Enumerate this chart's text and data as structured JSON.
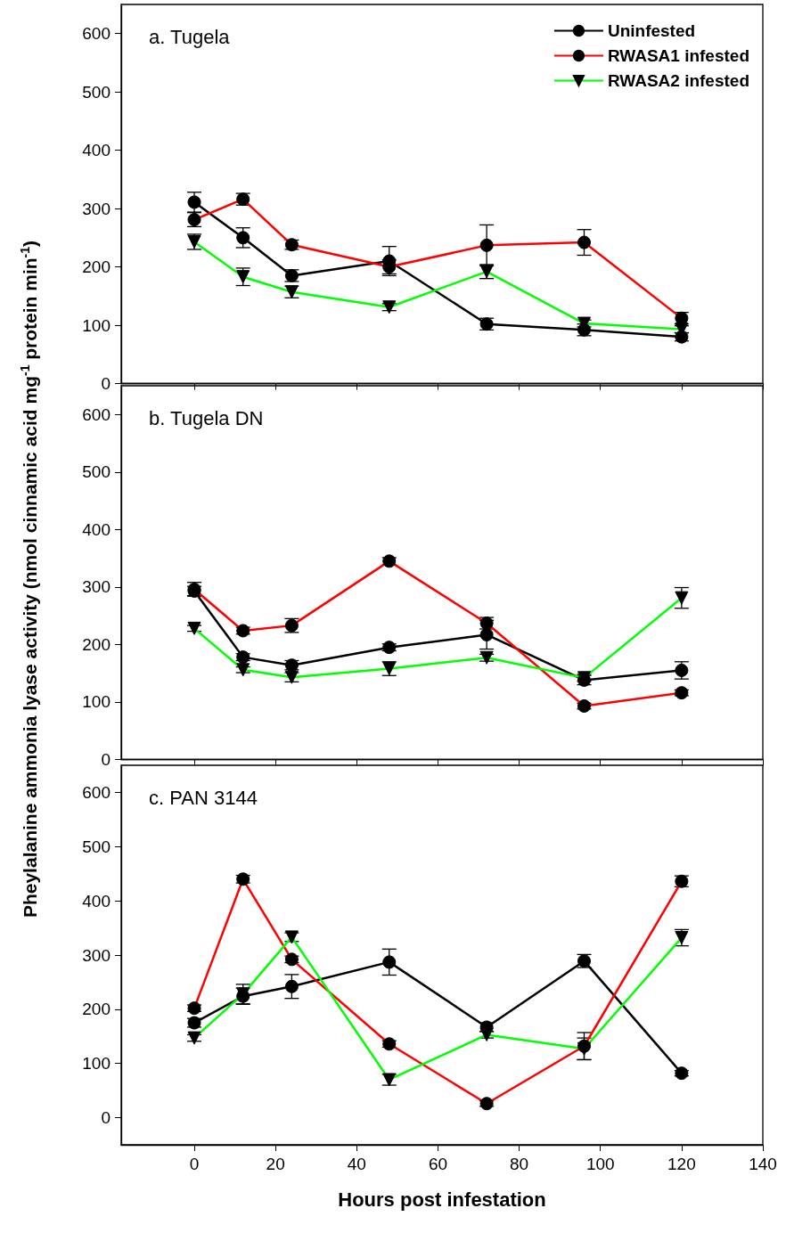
{
  "chart_data": [
    {
      "type": "line",
      "title": "a. Tugela",
      "legend": "top right",
      "tick_labels": "y",
      "grid": false,
      "x": [
        0,
        12,
        24,
        48,
        72,
        96,
        120
      ],
      "xlim": [
        -18,
        140
      ],
      "xticks": [
        0,
        20,
        40,
        60,
        80,
        100,
        120,
        140
      ],
      "ylim": [
        0,
        650
      ],
      "yticks": [
        0,
        100,
        200,
        300,
        400,
        500,
        600
      ],
      "series": [
        {
          "name": "Uninfested",
          "color": "#000000",
          "marker": "circle",
          "values": [
            311,
            250,
            185,
            210,
            102,
            92,
            80
          ],
          "errors": [
            17,
            17,
            10,
            25,
            10,
            10,
            7
          ]
        },
        {
          "name": "RWASA1 infested",
          "color": "#ff0000",
          "marker": "circle",
          "values": [
            281,
            316,
            238,
            200,
            237,
            242,
            112
          ],
          "errors": [
            12,
            10,
            8,
            12,
            35,
            22,
            10
          ]
        },
        {
          "name": "RWASA2 infested",
          "color": "#00ff00",
          "marker": "triangle",
          "values": [
            243,
            183,
            157,
            131,
            192,
            103,
            93
          ],
          "errors": [
            13,
            15,
            10,
            6,
            12,
            6,
            6
          ]
        }
      ]
    },
    {
      "type": "line",
      "title": "b. Tugela DN",
      "legend": false,
      "tick_labels": "y",
      "grid": false,
      "x": [
        0,
        12,
        24,
        48,
        72,
        96,
        120
      ],
      "xlim": [
        -18,
        140
      ],
      "xticks": [
        0,
        20,
        40,
        60,
        80,
        100,
        120,
        140
      ],
      "ylim": [
        0,
        650
      ],
      "yticks": [
        0,
        100,
        200,
        300,
        400,
        500,
        600
      ],
      "series": [
        {
          "color": "#000000",
          "marker": "circle",
          "values": [
            293,
            178,
            164,
            195,
            217,
            138,
            155
          ],
          "errors": [
            8,
            6,
            8,
            6,
            25,
            8,
            15
          ]
        },
        {
          "color": "#ff0000",
          "marker": "circle",
          "values": [
            296,
            224,
            233,
            345,
            237,
            93,
            116
          ],
          "errors": [
            12,
            6,
            12,
            6,
            10,
            5,
            5
          ]
        },
        {
          "color": "#00ff00",
          "marker": "triangle",
          "values": [
            228,
            156,
            143,
            158,
            177,
            142,
            281
          ],
          "errors": [
            5,
            5,
            8,
            12,
            6,
            6,
            18
          ]
        }
      ]
    },
    {
      "type": "line",
      "title": "c. PAN 3144",
      "legend": false,
      "grid": false,
      "xlabel": "Hours post infestation",
      "ylabel": "Pheylalanine ammonia lyase activity (nmol cinnamic acid mg$^{-1}$ protein min$^{-1}$)",
      "x": [
        0,
        12,
        24,
        48,
        72,
        96,
        120
      ],
      "xlim": [
        -18,
        140
      ],
      "xticks": [
        0,
        20,
        40,
        60,
        80,
        100,
        120,
        140
      ],
      "ylim": [
        -50,
        650
      ],
      "yticks": [
        0,
        100,
        200,
        300,
        400,
        500,
        600
      ],
      "series": [
        {
          "color": "#000000",
          "marker": "circle",
          "values": [
            175,
            224,
            242,
            287,
            167,
            289,
            82
          ],
          "errors": [
            8,
            15,
            22,
            24,
            8,
            12,
            5
          ]
        },
        {
          "color": "#ff0000",
          "marker": "circle",
          "values": [
            202,
            440,
            292,
            136,
            26,
            132,
            436
          ],
          "errors": [
            6,
            7,
            6,
            6,
            5,
            25,
            10
          ]
        },
        {
          "color": "#00ff00",
          "marker": "triangle",
          "values": [
            147,
            228,
            333,
            70,
            153,
            127,
            332
          ],
          "errors": [
            6,
            18,
            8,
            10,
            6,
            20,
            15
          ]
        }
      ]
    }
  ]
}
